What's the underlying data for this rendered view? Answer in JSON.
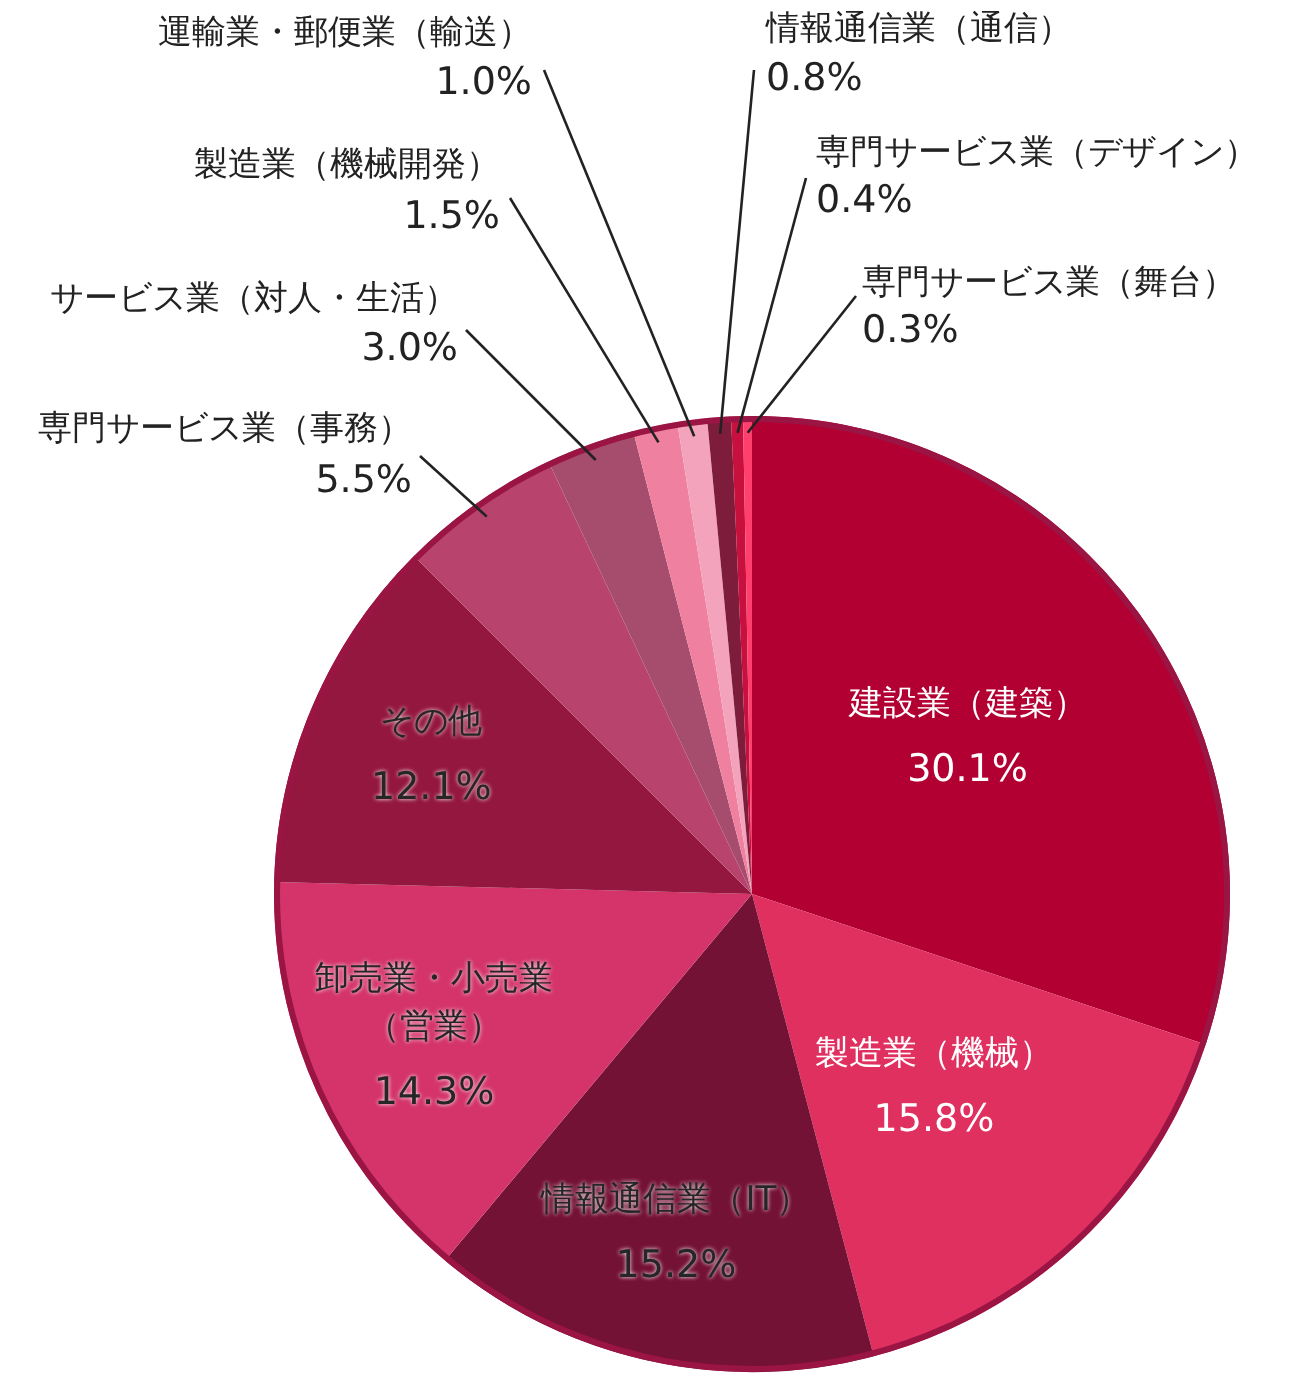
{
  "chart_data": {
    "type": "pie",
    "categories": [
      "建設業（建築）",
      "製造業（機械）",
      "情報通信業（IT）",
      "卸売業・小売業（営業）",
      "その他",
      "専門サービス業（事務）",
      "サービス業（対人・生活）",
      "製造業（機械開発）",
      "運輸業・郵便業（輸送）",
      "情報通信業（通信）",
      "専門サービス業（デザイン）",
      "専門サービス業（舞台）"
    ],
    "values": [
      30.1,
      15.8,
      15.2,
      14.3,
      12.1,
      5.5,
      3.0,
      1.5,
      1.0,
      0.8,
      0.4,
      0.3
    ],
    "value_labels": [
      "30.1%",
      "15.8%",
      "15.2%",
      "14.3%",
      "12.1%",
      "5.5%",
      "3.0%",
      "1.5%",
      "1.0%",
      "0.8%",
      "0.4%",
      "0.3%"
    ],
    "colors": [
      "#b30033",
      "#e03060",
      "#741235",
      "#d4346a",
      "#94173f",
      "#b8436c",
      "#a64c6c",
      "#f0809f",
      "#f3a3bb",
      "#7e1c3c",
      "#c8103f",
      "#ff3f6e"
    ],
    "legend": false
  }
}
